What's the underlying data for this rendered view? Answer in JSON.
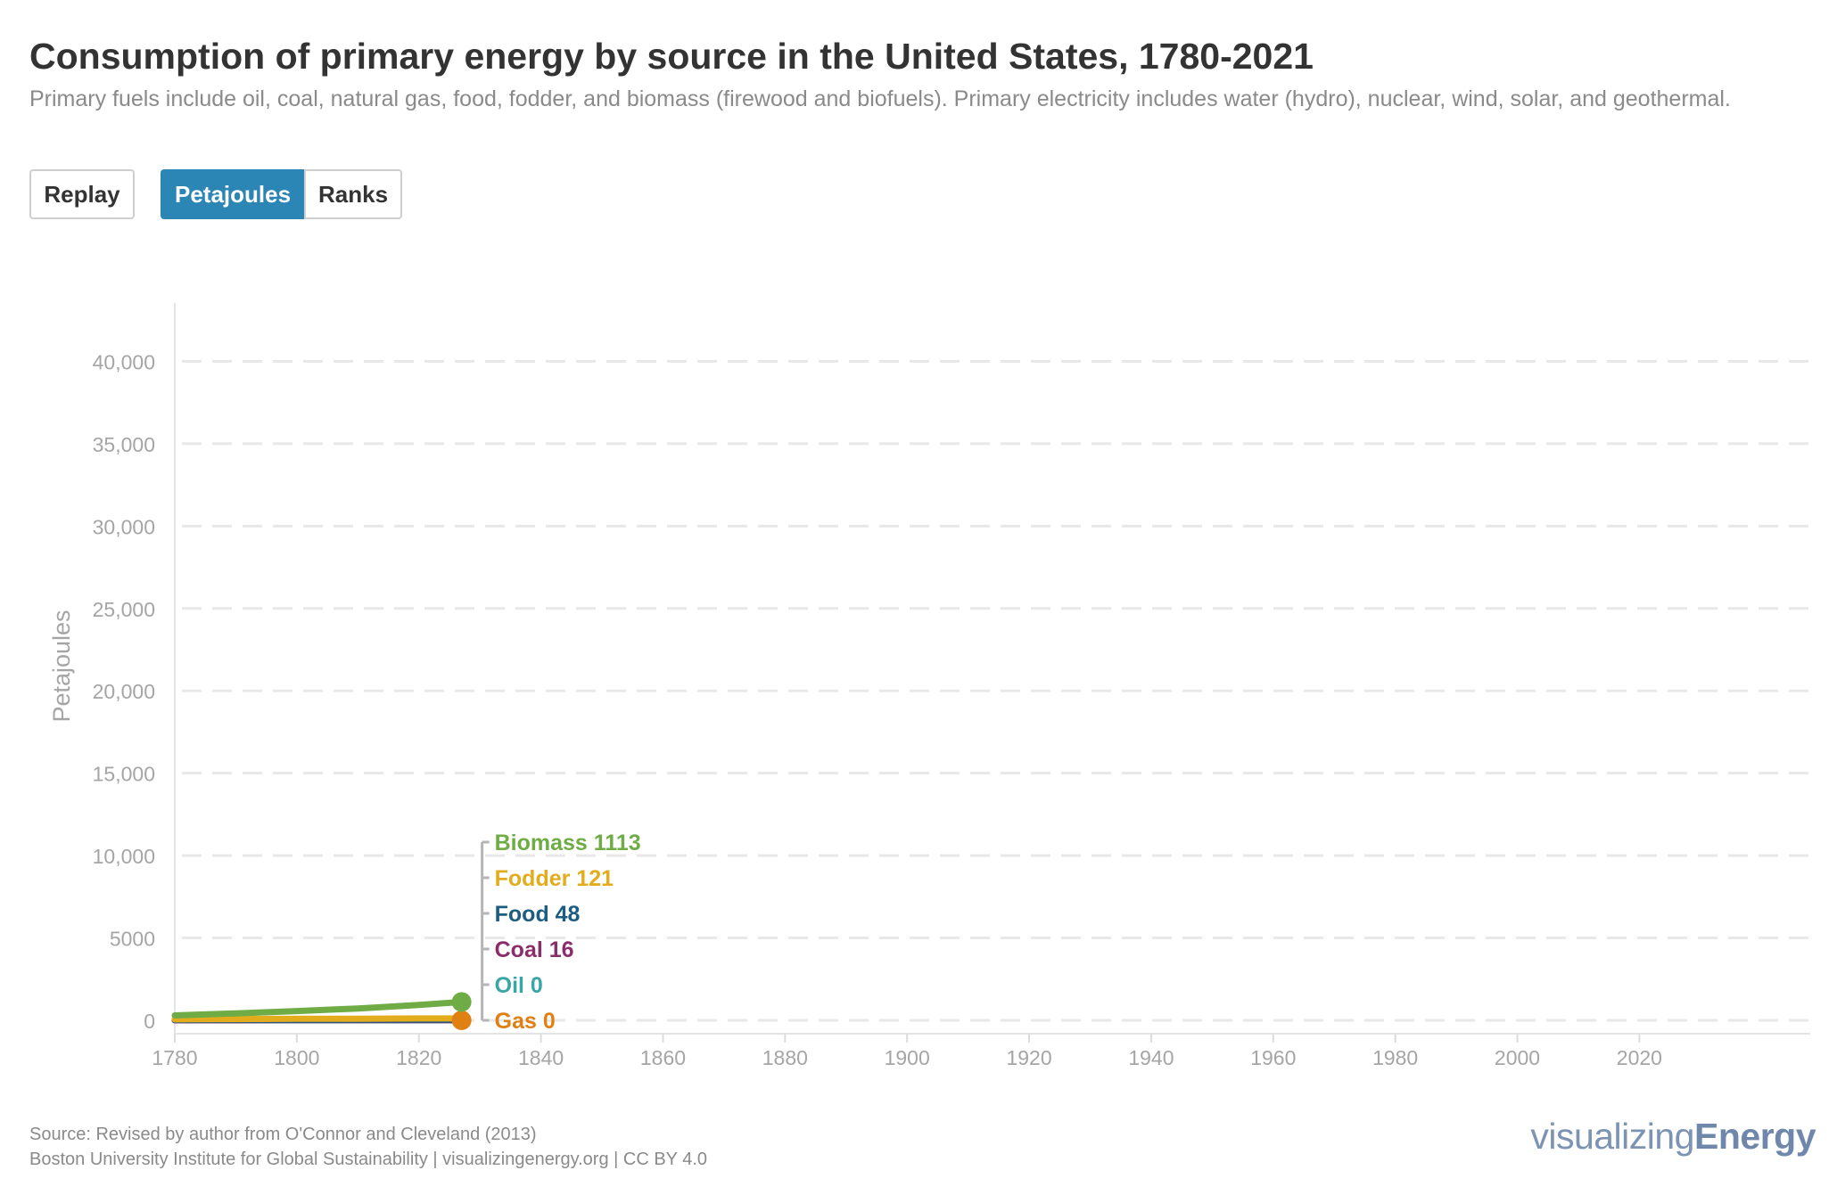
{
  "header": {
    "title": "Consumption of primary energy by source in the United States, 1780-2021",
    "subtitle": "Primary fuels include oil, coal, natural gas, food, fodder, and biomass (firewood and biofuels). Primary electricity includes water (hydro), nuclear, wind, solar, and geothermal."
  },
  "controls": {
    "replay_label": "Replay",
    "petajoules_label": "Petajoules",
    "ranks_label": "Ranks",
    "active": "Petajoules"
  },
  "chart_data": {
    "type": "line",
    "ylabel": "Petajoules",
    "xlim": [
      1780,
      2048
    ],
    "ylim": [
      0,
      43000
    ],
    "x_ticks": [
      1780,
      1800,
      1820,
      1840,
      1860,
      1880,
      1900,
      1920,
      1940,
      1960,
      1980,
      2000,
      2020
    ],
    "y_ticks": [
      0,
      5000,
      10000,
      15000,
      20000,
      25000,
      30000,
      35000,
      40000
    ],
    "y_tick_labels": [
      "0",
      "5000",
      "10,000",
      "15,000",
      "20,000",
      "25,000",
      "30,000",
      "35,000",
      "40,000"
    ],
    "grid": "horizontal dashed",
    "current_year": 1827,
    "series": [
      {
        "name": "Biomass",
        "color": "#6fac46",
        "x": [
          1780,
          1790,
          1800,
          1810,
          1820,
          1827
        ],
        "values": [
          300,
          420,
          560,
          720,
          930,
          1113
        ],
        "label": "Biomass 1113"
      },
      {
        "name": "Fodder",
        "color": "#e3ac1c",
        "x": [
          1780,
          1790,
          1800,
          1810,
          1820,
          1827
        ],
        "values": [
          60,
          75,
          90,
          100,
          112,
          121
        ],
        "label": "Fodder 121"
      },
      {
        "name": "Food",
        "color": "#1c5d80",
        "x": [
          1780,
          1790,
          1800,
          1810,
          1820,
          1827
        ],
        "values": [
          25,
          30,
          35,
          40,
          45,
          48
        ],
        "label": "Food 48"
      },
      {
        "name": "Coal",
        "color": "#8a2d6a",
        "x": [
          1780,
          1790,
          1800,
          1810,
          1820,
          1827
        ],
        "values": [
          5,
          7,
          9,
          11,
          14,
          16
        ],
        "label": "Coal 16"
      },
      {
        "name": "Oil",
        "color": "#3aa5a5",
        "x": [
          1780,
          1827
        ],
        "values": [
          0,
          0
        ],
        "label": "Oil 0"
      },
      {
        "name": "Gas",
        "color": "#e07f12",
        "x": [
          1800,
          1827
        ],
        "values": [
          0,
          0
        ],
        "label": "Gas 0"
      }
    ]
  },
  "footer": {
    "source": "Source: Revised by author from O'Connor and Cleveland (2013)",
    "credit": "Boston University Institute for Global Sustainability | visualizingenergy.org | CC BY 4.0"
  },
  "logo": {
    "part1": "visualizing",
    "part2": "Energy"
  }
}
